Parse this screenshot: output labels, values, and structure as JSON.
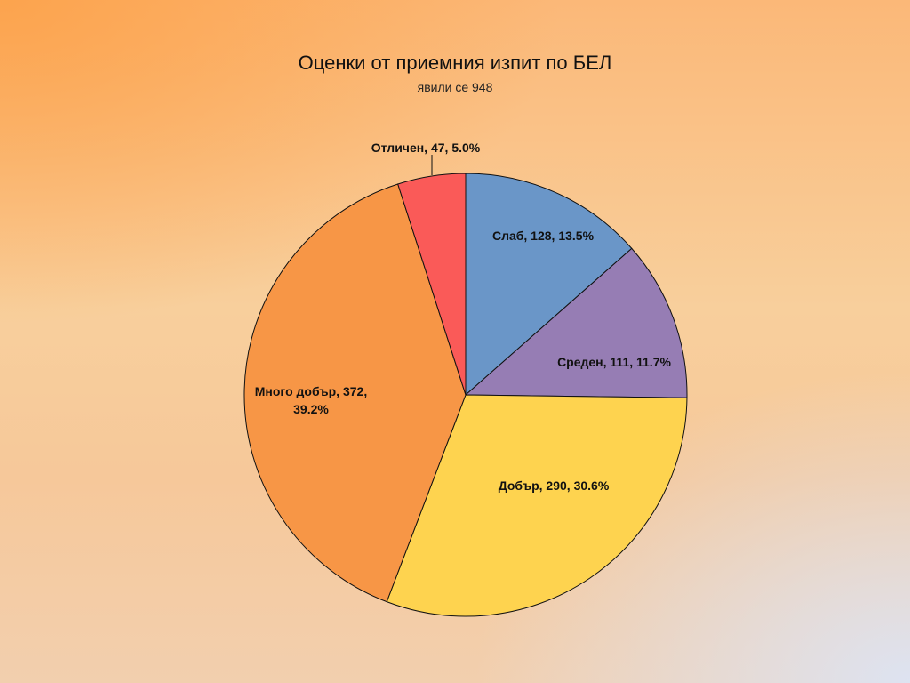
{
  "chart_data": {
    "type": "pie",
    "title": "Оценки от приемния изпит по БЕЛ",
    "subtitle": "явили се 948",
    "slices": [
      {
        "name": "Слаб",
        "value": 128,
        "percent": "13.5%",
        "color": "#6a96c8",
        "label_lines": [
          "Слаб, 128, 13.5%"
        ]
      },
      {
        "name": "Среден",
        "value": 111,
        "percent": "11.7%",
        "color": "#967db4",
        "label_lines": [
          "Среден, 111, 11.7%"
        ]
      },
      {
        "name": "Добър",
        "value": 290,
        "percent": "30.6%",
        "color": "#fed34f",
        "label_lines": [
          "Добър, 290, 30.6%"
        ]
      },
      {
        "name": "Много добър",
        "value": 372,
        "percent": "39.2%",
        "color": "#f79646",
        "label_lines": [
          "Много добър, 372,",
          "39.2%"
        ]
      },
      {
        "name": "Отличен",
        "value": 47,
        "percent": "5.0%",
        "color": "#fa5a58",
        "label_lines": [
          "Отличен, 47, 5.0%"
        ]
      }
    ]
  }
}
